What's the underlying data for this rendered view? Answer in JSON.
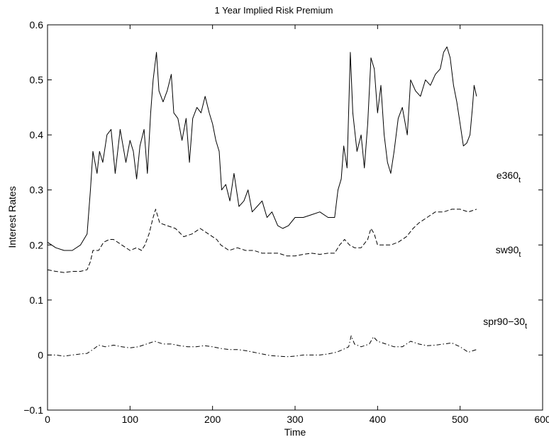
{
  "chart_data": {
    "type": "line",
    "title": "1 Year Implied Risk Premium",
    "xlabel": "Time",
    "ylabel": "Interest Rates",
    "xlim": [
      0,
      600
    ],
    "ylim": [
      -0.1,
      0.6
    ],
    "x_ticks": [
      0,
      100,
      200,
      300,
      400,
      500,
      600
    ],
    "y_ticks": [
      -0.1,
      0,
      0.1,
      0.2,
      0.3,
      0.4,
      0.5,
      0.6
    ],
    "grid": false,
    "legend": "none",
    "series": [
      {
        "name": "e360t",
        "label_main": "e360",
        "label_sub": "t",
        "style": "solid",
        "points": [
          [
            0,
            0.205
          ],
          [
            10,
            0.195
          ],
          [
            20,
            0.19
          ],
          [
            30,
            0.19
          ],
          [
            40,
            0.2
          ],
          [
            48,
            0.22
          ],
          [
            52,
            0.3
          ],
          [
            55,
            0.37
          ],
          [
            60,
            0.33
          ],
          [
            63,
            0.37
          ],
          [
            67,
            0.35
          ],
          [
            72,
            0.4
          ],
          [
            77,
            0.41
          ],
          [
            82,
            0.33
          ],
          [
            88,
            0.41
          ],
          [
            95,
            0.35
          ],
          [
            100,
            0.39
          ],
          [
            104,
            0.37
          ],
          [
            108,
            0.32
          ],
          [
            112,
            0.38
          ],
          [
            117,
            0.41
          ],
          [
            121,
            0.33
          ],
          [
            125,
            0.44
          ],
          [
            128,
            0.5
          ],
          [
            132,
            0.55
          ],
          [
            135,
            0.48
          ],
          [
            140,
            0.46
          ],
          [
            145,
            0.48
          ],
          [
            150,
            0.51
          ],
          [
            153,
            0.44
          ],
          [
            158,
            0.43
          ],
          [
            163,
            0.39
          ],
          [
            168,
            0.43
          ],
          [
            172,
            0.35
          ],
          [
            176,
            0.43
          ],
          [
            181,
            0.45
          ],
          [
            186,
            0.44
          ],
          [
            191,
            0.47
          ],
          [
            196,
            0.44
          ],
          [
            200,
            0.42
          ],
          [
            204,
            0.39
          ],
          [
            208,
            0.37
          ],
          [
            211,
            0.3
          ],
          [
            216,
            0.31
          ],
          [
            221,
            0.28
          ],
          [
            226,
            0.33
          ],
          [
            232,
            0.27
          ],
          [
            238,
            0.28
          ],
          [
            243,
            0.3
          ],
          [
            248,
            0.26
          ],
          [
            254,
            0.27
          ],
          [
            260,
            0.28
          ],
          [
            266,
            0.25
          ],
          [
            272,
            0.26
          ],
          [
            279,
            0.235
          ],
          [
            285,
            0.23
          ],
          [
            292,
            0.235
          ],
          [
            300,
            0.25
          ],
          [
            310,
            0.25
          ],
          [
            320,
            0.255
          ],
          [
            330,
            0.26
          ],
          [
            340,
            0.25
          ],
          [
            348,
            0.25
          ],
          [
            352,
            0.3
          ],
          [
            356,
            0.32
          ],
          [
            359,
            0.38
          ],
          [
            363,
            0.34
          ],
          [
            367,
            0.55
          ],
          [
            370,
            0.44
          ],
          [
            375,
            0.37
          ],
          [
            380,
            0.4
          ],
          [
            384,
            0.34
          ],
          [
            388,
            0.42
          ],
          [
            392,
            0.54
          ],
          [
            396,
            0.52
          ],
          [
            400,
            0.44
          ],
          [
            404,
            0.49
          ],
          [
            408,
            0.4
          ],
          [
            412,
            0.35
          ],
          [
            416,
            0.33
          ],
          [
            420,
            0.37
          ],
          [
            425,
            0.43
          ],
          [
            430,
            0.45
          ],
          [
            436,
            0.4
          ],
          [
            440,
            0.5
          ],
          [
            446,
            0.48
          ],
          [
            452,
            0.47
          ],
          [
            458,
            0.5
          ],
          [
            464,
            0.49
          ],
          [
            470,
            0.51
          ],
          [
            476,
            0.52
          ],
          [
            480,
            0.55
          ],
          [
            484,
            0.56
          ],
          [
            488,
            0.54
          ],
          [
            492,
            0.49
          ],
          [
            496,
            0.46
          ],
          [
            500,
            0.42
          ],
          [
            504,
            0.38
          ],
          [
            508,
            0.385
          ],
          [
            512,
            0.4
          ],
          [
            515,
            0.45
          ],
          [
            517,
            0.49
          ],
          [
            520,
            0.47
          ]
        ]
      },
      {
        "name": "sw90t",
        "label_main": "sw90",
        "label_sub": "t",
        "style": "dashed",
        "points": [
          [
            0,
            0.155
          ],
          [
            10,
            0.152
          ],
          [
            20,
            0.15
          ],
          [
            30,
            0.152
          ],
          [
            40,
            0.152
          ],
          [
            48,
            0.155
          ],
          [
            52,
            0.17
          ],
          [
            55,
            0.19
          ],
          [
            62,
            0.19
          ],
          [
            68,
            0.205
          ],
          [
            75,
            0.21
          ],
          [
            80,
            0.21
          ],
          [
            90,
            0.2
          ],
          [
            100,
            0.19
          ],
          [
            108,
            0.195
          ],
          [
            114,
            0.19
          ],
          [
            118,
            0.2
          ],
          [
            123,
            0.22
          ],
          [
            128,
            0.25
          ],
          [
            131,
            0.265
          ],
          [
            136,
            0.24
          ],
          [
            145,
            0.235
          ],
          [
            155,
            0.23
          ],
          [
            165,
            0.215
          ],
          [
            175,
            0.22
          ],
          [
            185,
            0.23
          ],
          [
            195,
            0.22
          ],
          [
            205,
            0.21
          ],
          [
            210,
            0.2
          ],
          [
            220,
            0.19
          ],
          [
            230,
            0.195
          ],
          [
            240,
            0.19
          ],
          [
            250,
            0.19
          ],
          [
            260,
            0.185
          ],
          [
            270,
            0.185
          ],
          [
            280,
            0.185
          ],
          [
            290,
            0.18
          ],
          [
            300,
            0.18
          ],
          [
            310,
            0.183
          ],
          [
            320,
            0.185
          ],
          [
            330,
            0.183
          ],
          [
            340,
            0.185
          ],
          [
            348,
            0.185
          ],
          [
            354,
            0.2
          ],
          [
            360,
            0.21
          ],
          [
            366,
            0.2
          ],
          [
            372,
            0.195
          ],
          [
            380,
            0.195
          ],
          [
            388,
            0.21
          ],
          [
            392,
            0.23
          ],
          [
            396,
            0.22
          ],
          [
            400,
            0.2
          ],
          [
            408,
            0.2
          ],
          [
            416,
            0.2
          ],
          [
            425,
            0.205
          ],
          [
            435,
            0.215
          ],
          [
            443,
            0.23
          ],
          [
            450,
            0.24
          ],
          [
            460,
            0.25
          ],
          [
            470,
            0.26
          ],
          [
            480,
            0.26
          ],
          [
            490,
            0.265
          ],
          [
            500,
            0.265
          ],
          [
            510,
            0.26
          ],
          [
            520,
            0.265
          ]
        ]
      },
      {
        "name": "spr90-30t",
        "label_main": "spr90−30",
        "label_sub": "t",
        "style": "dashdot",
        "points": [
          [
            0,
            0.0
          ],
          [
            10,
            0.0
          ],
          [
            20,
            -0.002
          ],
          [
            30,
            0.0
          ],
          [
            40,
            0.002
          ],
          [
            48,
            0.003
          ],
          [
            55,
            0.01
          ],
          [
            62,
            0.018
          ],
          [
            70,
            0.015
          ],
          [
            80,
            0.018
          ],
          [
            90,
            0.015
          ],
          [
            100,
            0.013
          ],
          [
            110,
            0.015
          ],
          [
            120,
            0.02
          ],
          [
            130,
            0.025
          ],
          [
            140,
            0.02
          ],
          [
            150,
            0.02
          ],
          [
            160,
            0.017
          ],
          [
            170,
            0.015
          ],
          [
            180,
            0.015
          ],
          [
            190,
            0.017
          ],
          [
            200,
            0.015
          ],
          [
            210,
            0.012
          ],
          [
            220,
            0.01
          ],
          [
            230,
            0.01
          ],
          [
            240,
            0.008
          ],
          [
            250,
            0.005
          ],
          [
            260,
            0.002
          ],
          [
            270,
            -0.001
          ],
          [
            280,
            -0.002
          ],
          [
            290,
            -0.003
          ],
          [
            300,
            -0.002
          ],
          [
            310,
            0.0
          ],
          [
            320,
            0.0
          ],
          [
            330,
            0.0
          ],
          [
            340,
            0.002
          ],
          [
            350,
            0.005
          ],
          [
            358,
            0.01
          ],
          [
            365,
            0.015
          ],
          [
            368,
            0.035
          ],
          [
            372,
            0.02
          ],
          [
            380,
            0.015
          ],
          [
            390,
            0.02
          ],
          [
            395,
            0.033
          ],
          [
            400,
            0.025
          ],
          [
            410,
            0.02
          ],
          [
            420,
            0.015
          ],
          [
            430,
            0.015
          ],
          [
            440,
            0.025
          ],
          [
            450,
            0.02
          ],
          [
            460,
            0.017
          ],
          [
            470,
            0.018
          ],
          [
            480,
            0.02
          ],
          [
            490,
            0.022
          ],
          [
            500,
            0.015
          ],
          [
            510,
            0.005
          ],
          [
            520,
            0.01
          ]
        ]
      }
    ]
  }
}
